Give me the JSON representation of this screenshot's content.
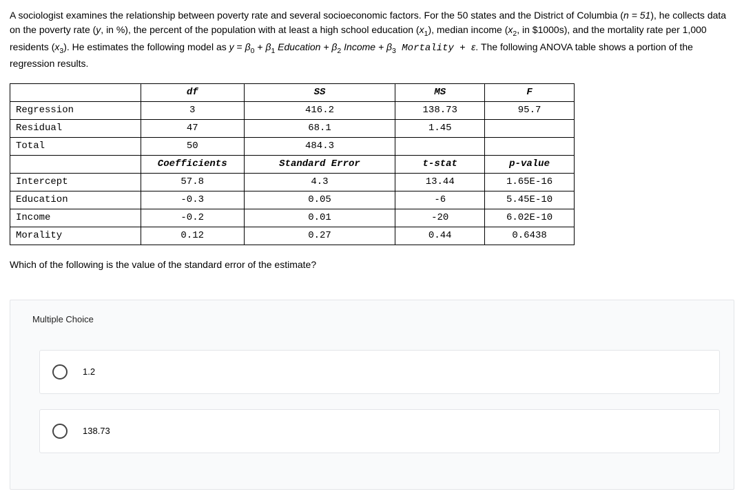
{
  "question": {
    "intro_p1": "A sociologist examines the relationship between poverty rate and several socioeconomic factors. For the 50 states and the District of Columbia (",
    "n_eq": "n = 51",
    "intro_p2": "), he collects data on the poverty rate (",
    "y_def": "y",
    "y_units": ", in %), the percent of the population with at least a high school education (",
    "x1": "x",
    "x1_sub": "1",
    "p3": "), median income (",
    "x2": "x",
    "x2_sub": "2",
    "p4": ", in $1000s), and the mortality rate per 1,000 residents (",
    "x3": "x",
    "x3_sub": "3",
    "p5": "). He estimates the following model as ",
    "model_y": "y",
    "model_eq": " = ",
    "b0": "β",
    "s0": "0",
    "plus1": "  +  ",
    "b1": "β",
    "s1": "1",
    "t1": " Education + ",
    "b2": "β",
    "s2": "2",
    "t2": " Income + ",
    "b3": "β",
    "s3": "3",
    "t3_mono": "  Mortality  +  ",
    "eps": "ε",
    "p6": ". The following ANOVA table shows a portion of the regression results."
  },
  "anova": {
    "hdr": {
      "df": "df",
      "ss": "SS",
      "ms": "MS",
      "f": "F"
    },
    "rows": [
      {
        "label": "Regression",
        "df": "3",
        "ss": "416.2",
        "ms": "138.73",
        "f": "95.7"
      },
      {
        "label": "Residual",
        "df": "47",
        "ss": "68.1",
        "ms": "1.45",
        "f": ""
      },
      {
        "label": "Total",
        "df": "50",
        "ss": "484.3",
        "ms": "",
        "f": ""
      }
    ],
    "hdr2": {
      "coef": "Coefficients",
      "se": "Standard Error",
      "t": "t-stat",
      "p": "p-value"
    },
    "coefs": [
      {
        "label": "Intercept",
        "coef": "57.8",
        "se": "4.3",
        "t": "13.44",
        "p": "1.65E-16"
      },
      {
        "label": "Education",
        "coef": "-0.3",
        "se": "0.05",
        "t": "-6",
        "p": "5.45E-10"
      },
      {
        "label": "Income",
        "coef": "-0.2",
        "se": "0.01",
        "t": "-20",
        "p": "6.02E-10"
      },
      {
        "label": "Morality",
        "coef": "0.12",
        "se": "0.27",
        "t": "0.44",
        "p": "0.6438"
      }
    ]
  },
  "subquestion": "Which of the following is the value of the standard error of the estimate?",
  "mc": {
    "label": "Multiple Choice",
    "options": [
      {
        "text": "1.2"
      },
      {
        "text": "138.73"
      }
    ]
  },
  "style": {
    "table_border_color": "#000000",
    "mc_bg": "#f9fafb",
    "mc_border": "#e3e5e8",
    "radio_border": "#444444"
  }
}
